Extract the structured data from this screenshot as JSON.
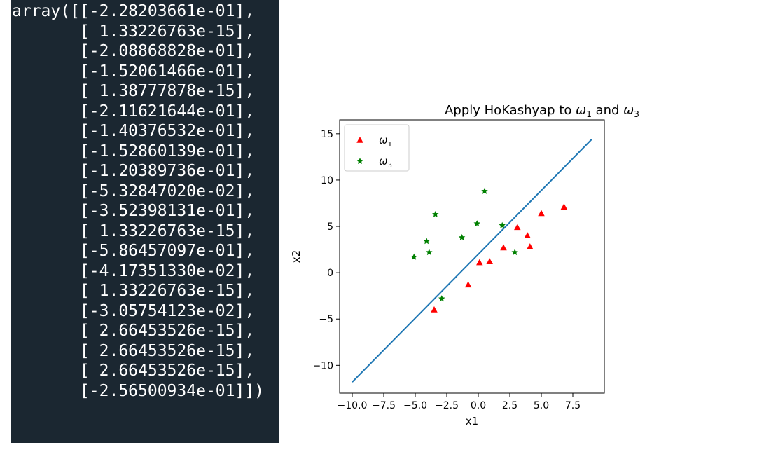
{
  "console": {
    "lines": [
      "array([[-2.28203661e-01],",
      "       [ 1.33226763e-15],",
      "       [-2.08868828e-01],",
      "       [-1.52061466e-01],",
      "       [ 1.38777878e-15],",
      "       [-2.11621644e-01],",
      "       [-1.40376532e-01],",
      "       [-1.52860139e-01],",
      "       [-1.20389736e-01],",
      "       [-5.32847020e-02],",
      "       [-3.52398131e-01],",
      "       [ 1.33226763e-15],",
      "       [-5.86457097e-01],",
      "       [-4.17351330e-02],",
      "       [ 1.33226763e-15],",
      "       [-3.05754123e-02],",
      "       [ 2.66453526e-15],",
      "       [ 2.66453526e-15],",
      "       [ 2.66453526e-15],",
      "       [-2.56500934e-01]])"
    ]
  },
  "chart_data": {
    "type": "scatter",
    "title_prefix": "Apply HoKashyap to ",
    "title_mid": " and ",
    "omega": "ω",
    "xlabel": "x1",
    "ylabel": "x2",
    "xlim": [
      -11.0,
      10.0
    ],
    "ylim": [
      -13.0,
      16.5
    ],
    "xticks": [
      -10.0,
      -7.5,
      -5.0,
      -2.5,
      0.0,
      2.5,
      5.0,
      7.5
    ],
    "xtick_labels": [
      "−10.0",
      "−7.5",
      "−5.0",
      "−2.5",
      "0.0",
      "2.5",
      "5.0",
      "7.5"
    ],
    "yticks": [
      -10,
      -5,
      0,
      5,
      10,
      15
    ],
    "ytick_labels": [
      "−10",
      "−5",
      "0",
      "5",
      "10",
      "15"
    ],
    "grid": false,
    "legend_position": "top-left",
    "series": [
      {
        "name": "ω1",
        "sub": "1",
        "marker": "triangle",
        "color": "#ff0000",
        "points": [
          [
            6.8,
            7.1
          ],
          [
            5.0,
            6.4
          ],
          [
            3.1,
            4.9
          ],
          [
            3.9,
            4.0
          ],
          [
            4.1,
            2.8
          ],
          [
            2.0,
            2.7
          ],
          [
            0.9,
            1.2
          ],
          [
            0.1,
            1.1
          ],
          [
            -0.8,
            -1.3
          ],
          [
            -3.5,
            -4.0
          ]
        ]
      },
      {
        "name": "ω3",
        "sub": "3",
        "marker": "star",
        "color": "#008000",
        "points": [
          [
            0.5,
            8.8
          ],
          [
            -3.4,
            6.3
          ],
          [
            -0.1,
            5.3
          ],
          [
            1.9,
            5.1
          ],
          [
            -1.3,
            3.8
          ],
          [
            -4.1,
            3.4
          ],
          [
            -3.9,
            2.2
          ],
          [
            2.9,
            2.2
          ],
          [
            -5.1,
            1.7
          ],
          [
            -2.9,
            -2.8
          ]
        ]
      }
    ],
    "line": {
      "color": "#1f77b4",
      "points": [
        [
          -10.0,
          -11.8
        ],
        [
          9.0,
          14.4
        ]
      ]
    }
  }
}
